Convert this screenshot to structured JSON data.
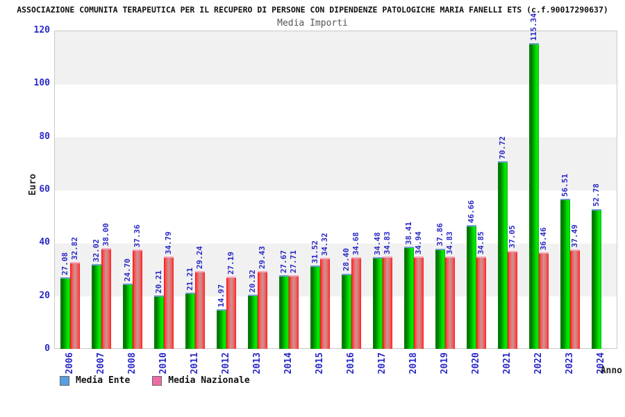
{
  "header": {
    "title": "ASSOCIAZIONE COMUNITA TERAPEUTICA PER IL RECUPERO DI PERSONE CON DIPENDENZE PATOLOGICHE MARIA FANELLI ETS (c.f.90017290637)"
  },
  "colors": {
    "axis_label_blue": "#2929c8",
    "band_gray": "#f1f1f1",
    "bar_green_dark": "#007800",
    "bar_green_bright": "#00f000",
    "bar_red_bright": "#ff0a0a",
    "bar_red_pale": "#cf9292",
    "legend_ente_swatch": "#58a0e0",
    "legend_nazionale_swatch": "#ee6ba8"
  },
  "chart_data": {
    "type": "bar",
    "title": "Media Importi",
    "xlabel": "Anno",
    "ylabel": "Euro",
    "ylim": [
      0,
      120
    ],
    "yticks": [
      0,
      20,
      40,
      60,
      80,
      100,
      120
    ],
    "grid": "horizontal-bands-alternating",
    "legend_position": "bottom-left",
    "categories": [
      "2006",
      "2007",
      "2008",
      "2010",
      "2011",
      "2012",
      "2013",
      "2014",
      "2015",
      "2016",
      "2017",
      "2018",
      "2019",
      "2020",
      "2021",
      "2022",
      "2023",
      "2024"
    ],
    "series": [
      {
        "name": "Media Ente",
        "key": "ente",
        "swatch_color": "#58a0e0",
        "values": [
          27.08,
          32.02,
          24.7,
          20.21,
          21.21,
          14.97,
          20.32,
          27.67,
          31.52,
          28.4,
          34.48,
          38.41,
          37.86,
          46.66,
          70.72,
          115.34,
          56.51,
          52.78
        ]
      },
      {
        "name": "Media Nazionale",
        "key": "nazionale",
        "swatch_color": "#ee6ba8",
        "values": [
          32.82,
          38.0,
          37.36,
          34.79,
          29.24,
          27.19,
          29.43,
          27.71,
          34.32,
          34.68,
          34.83,
          34.94,
          34.83,
          34.85,
          37.05,
          36.46,
          37.49,
          null
        ]
      }
    ]
  }
}
